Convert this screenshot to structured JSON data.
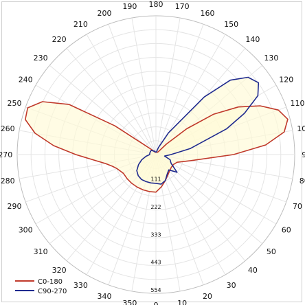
{
  "chart_data": {
    "type": "polar-line",
    "title": "",
    "angle_labels": [
      0,
      10,
      20,
      30,
      40,
      50,
      60,
      70,
      80,
      90,
      100,
      110,
      120,
      130,
      140,
      150,
      160,
      170,
      180,
      190,
      200,
      210,
      220,
      230,
      240,
      250,
      260,
      270,
      280,
      290,
      300,
      310,
      320,
      330,
      340,
      350
    ],
    "radial_tick_labels": [
      111,
      222,
      333,
      443,
      554
    ],
    "rmax": 554,
    "grid": true,
    "legend_position": "bottom-left",
    "series": [
      {
        "name": "C0-180",
        "color": "#c0392b",
        "theta": [
          0,
          10,
          20,
          30,
          40,
          50,
          60,
          70,
          80,
          90,
          95,
          100,
          105,
          110,
          115,
          120,
          125,
          130,
          135,
          140,
          150,
          160,
          170,
          180,
          190,
          200,
          210,
          220,
          230,
          235,
          240,
          245,
          250,
          255,
          260,
          265,
          270,
          275,
          280,
          285,
          290,
          300,
          310,
          320,
          330,
          340,
          350
        ],
        "r": [
          150,
          130,
          110,
          95,
          85,
          80,
          80,
          90,
          140,
          310,
          440,
          520,
          545,
          520,
          460,
          380,
          280,
          160,
          60,
          15,
          10,
          10,
          10,
          10,
          10,
          10,
          15,
          25,
          60,
          200,
          400,
          500,
          545,
          540,
          490,
          410,
          320,
          250,
          205,
          180,
          165,
          150,
          150,
          150,
          150,
          150,
          150
        ]
      },
      {
        "name": "C90-270",
        "color": "#1f2a8f",
        "theta": [
          0,
          10,
          20,
          30,
          40,
          50,
          60,
          70,
          80,
          90,
          100,
          110,
          115,
          120,
          125,
          130,
          135,
          140,
          150,
          160,
          170,
          180,
          190,
          200,
          210,
          220,
          230,
          240,
          250,
          260,
          270,
          280,
          290,
          300,
          310,
          320,
          330,
          340,
          350
        ],
        "r": [
          115,
          120,
          110,
          90,
          80,
          110,
          70,
          60,
          35,
          60,
          140,
          300,
          390,
          470,
          500,
          480,
          420,
          300,
          100,
          30,
          10,
          10,
          10,
          15,
          15,
          20,
          25,
          25,
          25,
          25,
          25,
          40,
          60,
          80,
          100,
          110,
          115,
          115,
          115
        ]
      }
    ]
  }
}
